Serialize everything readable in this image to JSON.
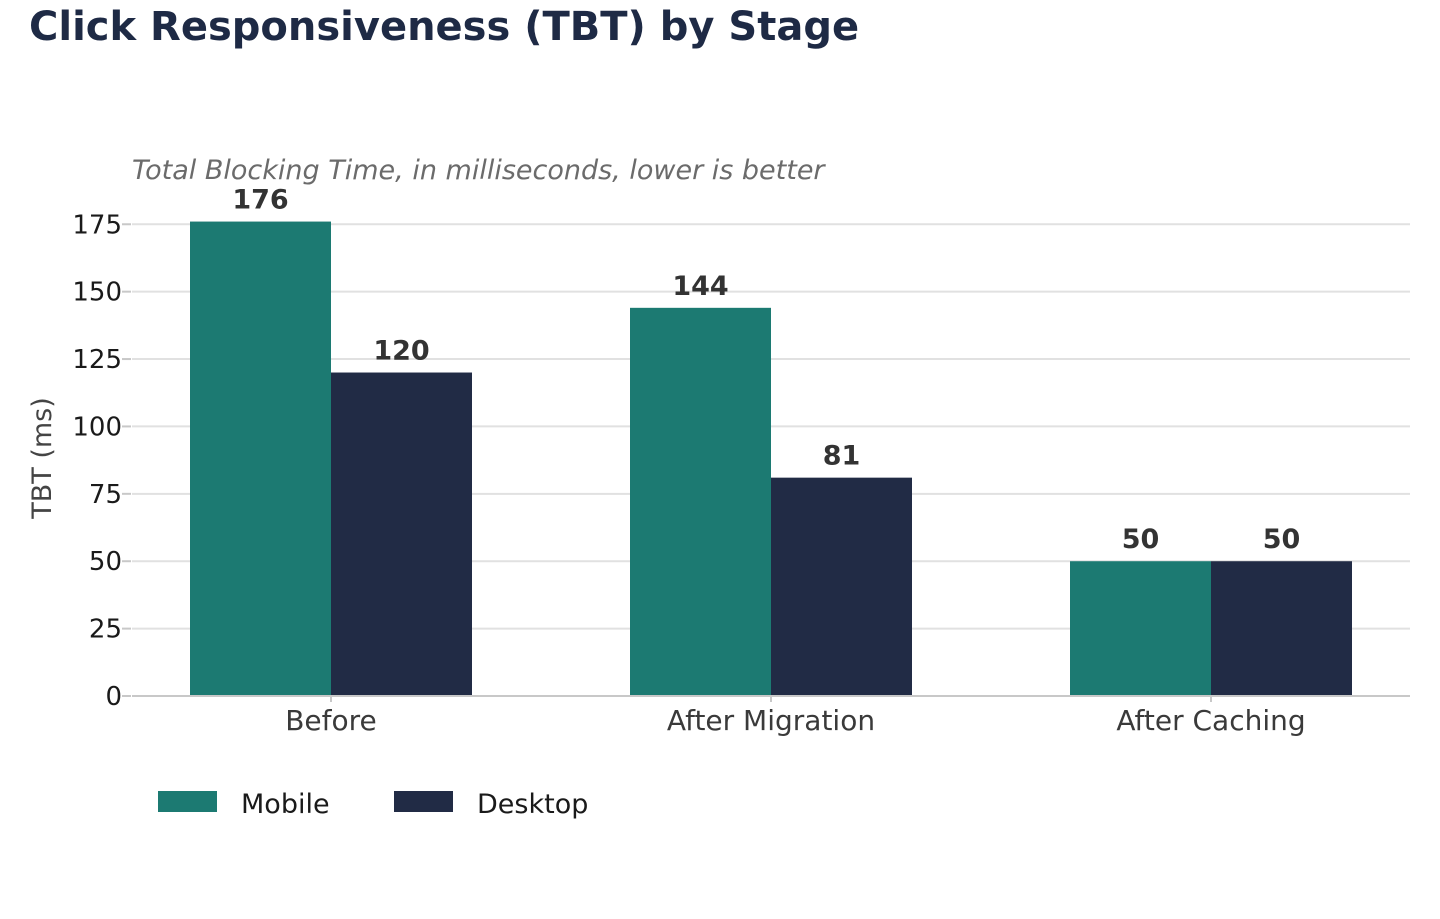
{
  "chart_data": {
    "type": "bar",
    "title": "Click Responsiveness (TBT) by Stage",
    "subtitle": "Total Blocking Time, in milliseconds, lower is better",
    "xlabel": "",
    "ylabel": "TBT (ms)",
    "categories": [
      "Before",
      "After Migration",
      "After Caching"
    ],
    "series": [
      {
        "name": "Mobile",
        "values": [
          176,
          144,
          50
        ],
        "color": "#1c7a72"
      },
      {
        "name": "Desktop",
        "values": [
          120,
          81,
          50
        ],
        "color": "#212b45"
      }
    ],
    "ylim": [
      0,
      184
    ],
    "yticks": [
      0,
      25,
      50,
      75,
      100,
      125,
      150,
      175
    ],
    "grid": true,
    "legend_position": "bottom-left"
  }
}
